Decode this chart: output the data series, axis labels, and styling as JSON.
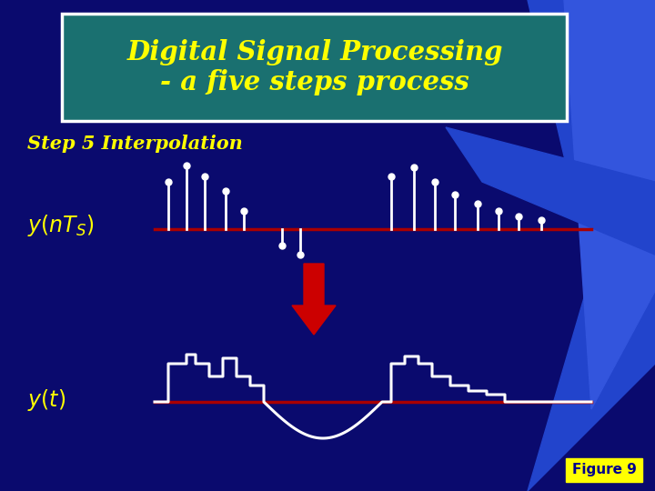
{
  "bg_color": "#0a0a6e",
  "title_box_color": "#1a7070",
  "title_box_edge": "#ffffff",
  "title_text": "Digital Signal Processing\n- a five steps process",
  "title_color": "#ffff00",
  "step_text": "Step 5 Interpolation",
  "step_color": "#ffff00",
  "label_color": "#ffff00",
  "figure_label": "Figure 9",
  "figure_label_bg": "#ffff00",
  "figure_label_color": "#00008b",
  "line_color": "#aa0000",
  "signal_color": "#ffffff",
  "arrow_color": "#cc0000",
  "blue_shape_color": "#2244cc",
  "blue_shape2_color": "#3355dd"
}
